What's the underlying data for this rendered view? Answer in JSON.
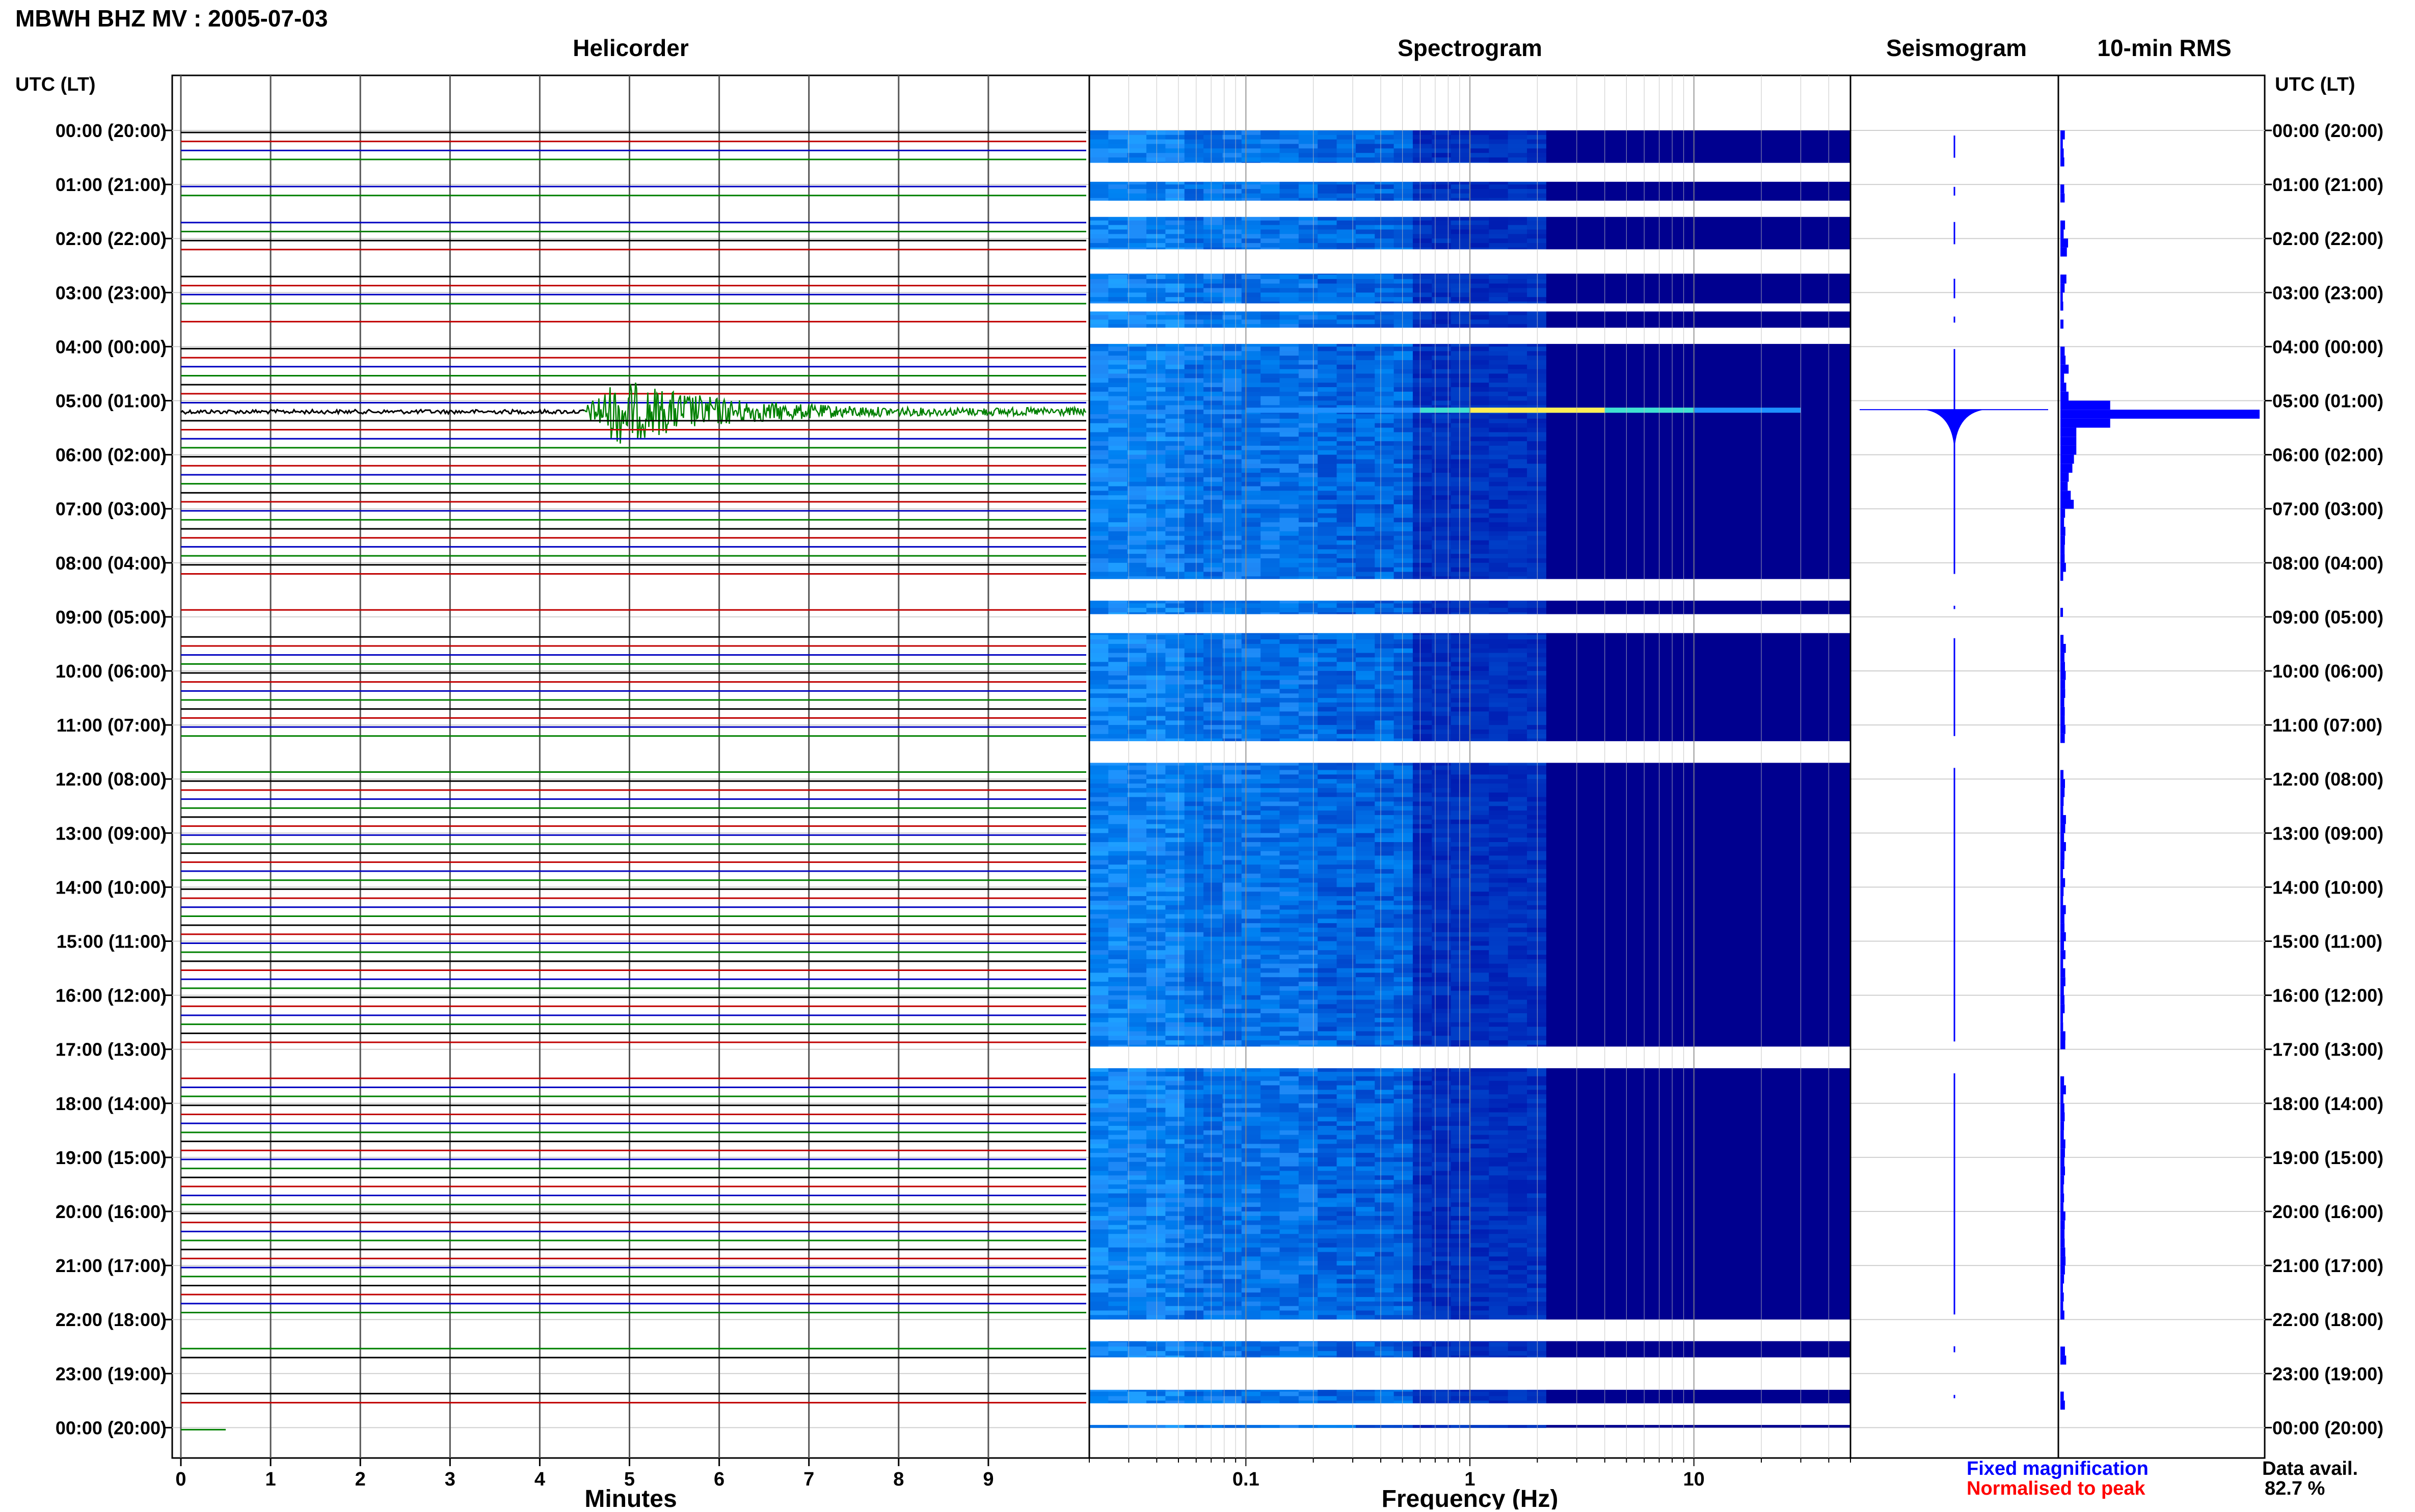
{
  "header": {
    "title": "MBWH BHZ MV : 2005-07-03",
    "left_axis_label": "UTC (LT)",
    "right_axis_label": "UTC (LT)"
  },
  "panels": {
    "helicorder": "Helicorder",
    "spectrogram": "Spectrogram",
    "seismogram": "Seismogram",
    "rms": "10-min RMS"
  },
  "legend": {
    "fixed": "Fixed magnification",
    "normalised": "Normalised to peak",
    "fixed_color": "#0000ff",
    "normalised_color": "#ff0000"
  },
  "availability": {
    "label": "Data avail.",
    "value": "82.7 %"
  },
  "chart_data": {
    "type": "heatmap",
    "title": "MBWH BHZ MV : 2005-07-03",
    "time_labels": [
      "00:00 (20:00)",
      "01:00 (21:00)",
      "02:00 (22:00)",
      "03:00 (23:00)",
      "04:00 (00:00)",
      "05:00 (01:00)",
      "06:00 (02:00)",
      "07:00 (03:00)",
      "08:00 (04:00)",
      "09:00 (05:00)",
      "10:00 (06:00)",
      "11:00 (07:00)",
      "12:00 (08:00)",
      "13:00 (09:00)",
      "14:00 (10:00)",
      "15:00 (11:00)",
      "16:00 (12:00)",
      "17:00 (13:00)",
      "18:00 (14:00)",
      "19:00 (15:00)",
      "20:00 (16:00)",
      "21:00 (17:00)",
      "22:00 (18:00)",
      "23:00 (19:00)",
      "00:00 (20:00)"
    ],
    "helicorder": {
      "xlabel": "Minutes",
      "xticks": [
        0,
        1,
        2,
        3,
        4,
        5,
        6,
        7,
        8,
        9
      ],
      "xlim": [
        0,
        10
      ],
      "trace_colors": [
        "#000000",
        "#c00000",
        "#0000c0",
        "#008000"
      ],
      "traces_per_hour": 6,
      "event": {
        "hour": 5.1667,
        "start_min": 4.5,
        "peak_min": 4.85,
        "end_min": 10
      }
    },
    "spectrogram": {
      "xlabel": "Frequency (Hz)",
      "scale": "log",
      "xlim": [
        0.02,
        50
      ],
      "xticks": [
        0.1,
        1,
        10
      ],
      "xtick_labels": [
        "0.1",
        "1",
        "10"
      ],
      "data_gaps_hours": [
        [
          0.6,
          0.95
        ],
        [
          1.3,
          1.6
        ],
        [
          2.2,
          2.65
        ],
        [
          3.2,
          3.35
        ],
        [
          3.65,
          3.95
        ],
        [
          8.3,
          8.7
        ],
        [
          8.95,
          9.3
        ],
        [
          11.3,
          11.7
        ],
        [
          16.95,
          17.35
        ],
        [
          22.0,
          22.4
        ],
        [
          22.7,
          23.3
        ],
        [
          23.55,
          23.95
        ]
      ],
      "event_hour": 5.1667
    },
    "seismogram": {
      "event_hour": 5.1667
    },
    "rms": {
      "values_per_hour": [
        0.02,
        0.02,
        0.03,
        0.02,
        0.03,
        0.9,
        0.05,
        0.03,
        0.02,
        0.02,
        0.02,
        0.02,
        0.02,
        0.02,
        0.02,
        0.02,
        0.02,
        0.02,
        0.02,
        0.02,
        0.02,
        0.02,
        0.03,
        0.02
      ],
      "peak_hour": 5.1667,
      "peak": 1.0
    }
  }
}
